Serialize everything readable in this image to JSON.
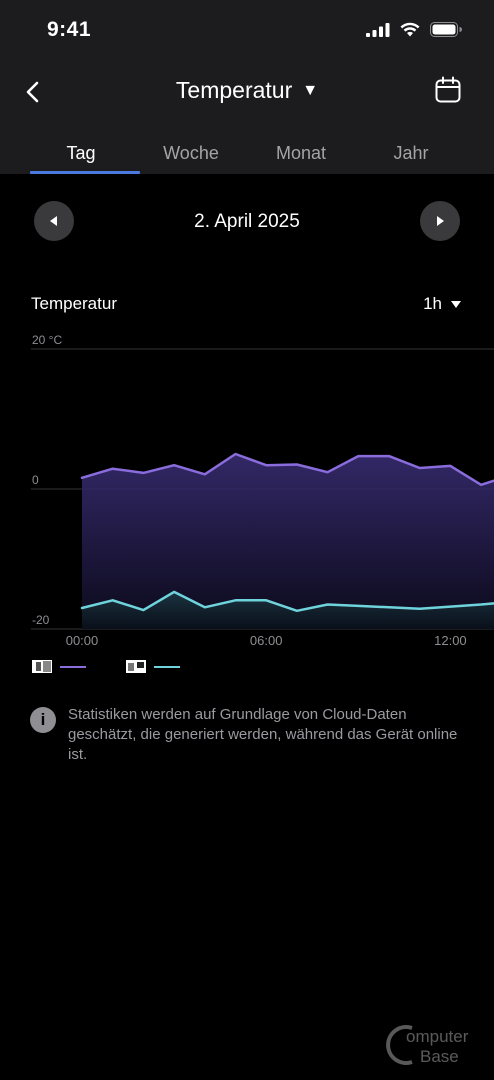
{
  "status": {
    "time": "9:41"
  },
  "nav": {
    "title": "Temperatur",
    "caret": "▼"
  },
  "tabs": [
    {
      "label": "Tag",
      "active": true
    },
    {
      "label": "Woche",
      "active": false
    },
    {
      "label": "Monat",
      "active": false
    },
    {
      "label": "Jahr",
      "active": false
    }
  ],
  "date_nav": {
    "date": "2. April 2025"
  },
  "chart_header": {
    "title": "Temperatur",
    "interval": "1h"
  },
  "chart_data": {
    "type": "area",
    "y_ticks": [
      "20 °C",
      "0",
      "-20"
    ],
    "ylim": [
      -20,
      20
    ],
    "x_ticks": [
      "00:00",
      "06:00",
      "12:00"
    ],
    "series": [
      {
        "color": "#8a6cdc",
        "x": [
          0,
          1,
          2,
          3,
          4,
          5,
          6,
          7,
          8,
          9,
          10,
          11,
          12,
          13,
          14,
          15
        ],
        "values": [
          1.6,
          2.9,
          2.3,
          3.4,
          2.1,
          5.0,
          3.4,
          3.5,
          2.4,
          4.7,
          4.7,
          3.0,
          3.3,
          0.6,
          2.0,
          2.4
        ]
      },
      {
        "color": "#6fd3dc",
        "x": [
          0,
          1,
          2,
          3,
          4,
          5,
          6,
          7,
          8,
          9,
          10,
          11,
          12,
          13,
          14,
          15
        ],
        "values": [
          -17.0,
          -15.9,
          -17.3,
          -14.7,
          -16.9,
          -15.9,
          -15.9,
          -17.4,
          -16.5,
          -16.7,
          -16.9,
          -17.1,
          -16.8,
          -16.5,
          -16.1,
          -16.3
        ]
      }
    ]
  },
  "info": {
    "text": "Statistiken werden auf Grundlage von Cloud-Daten geschätzt, die generiert werden, während das Gerät online ist."
  },
  "watermark": "ComputerBase"
}
